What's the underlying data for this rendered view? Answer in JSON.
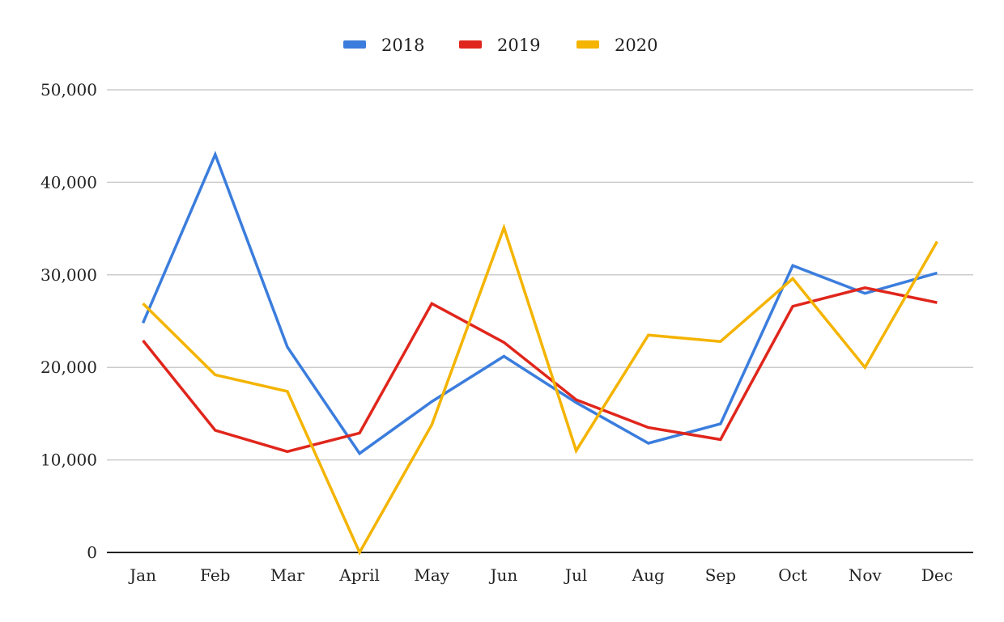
{
  "chart_data": {
    "type": "line",
    "categories": [
      "Jan",
      "Feb",
      "Mar",
      "April",
      "May",
      "Jun",
      "Jul",
      "Aug",
      "Sep",
      "Oct",
      "Nov",
      "Dec"
    ],
    "series": [
      {
        "name": "2018",
        "color": "#3b7ddd",
        "values": [
          24800,
          43000,
          22200,
          10700,
          16300,
          21200,
          16200,
          11800,
          13900,
          31000,
          28000,
          30200
        ]
      },
      {
        "name": "2019",
        "color": "#e0261c",
        "values": [
          22900,
          13200,
          10900,
          12900,
          26900,
          22700,
          16500,
          13500,
          12200,
          26600,
          28600,
          27000
        ]
      },
      {
        "name": "2020",
        "color": "#f4b400",
        "values": [
          26900,
          19200,
          17400,
          0,
          13800,
          35100,
          11000,
          23500,
          22800,
          29600,
          20000,
          33600
        ]
      }
    ],
    "ylim": [
      0,
      50000
    ],
    "yticks": [
      0,
      10000,
      20000,
      30000,
      40000,
      50000
    ],
    "ytick_labels": [
      "0",
      "10,000",
      "20,000",
      "30,000",
      "40,000",
      "50,000"
    ],
    "grid": true,
    "legend_position": "top-center",
    "gridline_color": "#cccccc",
    "axis_color": "#222222"
  }
}
